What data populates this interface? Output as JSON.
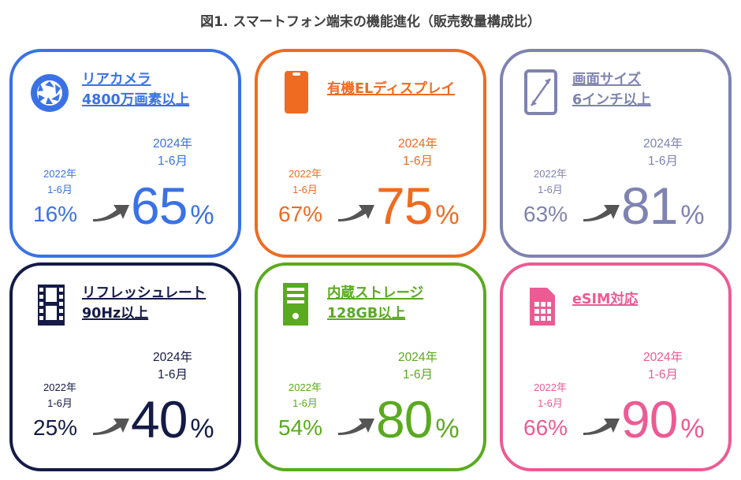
{
  "title": "図1. スマートフォン端末の機能進化（販売数量構成比）",
  "cards": [
    {
      "id": "rear-camera",
      "color": "#3a72e6",
      "icon": "camera-aperture-icon",
      "label_lines": [
        "リアカメラ",
        "4800万画素以上"
      ],
      "old_period": [
        "2022年",
        "1-6月"
      ],
      "new_period": [
        "2024年",
        "1-6月"
      ],
      "old_value": "16%",
      "new_value": "65",
      "percent_sign": "%"
    },
    {
      "id": "oled",
      "color": "#ef6b22",
      "icon": "smartphone-icon",
      "label_lines": [
        "有機ELディスプレイ"
      ],
      "old_period": [
        "2022年",
        "1-6月"
      ],
      "new_period": [
        "2024年",
        "1-6月"
      ],
      "old_value": "67%",
      "new_value": "75",
      "percent_sign": "%"
    },
    {
      "id": "screen-size",
      "color": "#7f83b0",
      "icon": "tablet-resize-icon",
      "label_lines": [
        "画面サイズ",
        "6インチ以上"
      ],
      "old_period": [
        "2022年",
        "1-6月"
      ],
      "new_period": [
        "2024年",
        "1-6月"
      ],
      "old_value": "63%",
      "new_value": "81",
      "percent_sign": "%"
    },
    {
      "id": "refresh-rate",
      "color": "#151b46",
      "icon": "film-strip-icon",
      "label_lines": [
        "リフレッシュレート",
        "90Hz以上"
      ],
      "old_period": [
        "2022年",
        "1-6月"
      ],
      "new_period": [
        "2024年",
        "1-6月"
      ],
      "old_value": "25%",
      "new_value": "40",
      "percent_sign": "%"
    },
    {
      "id": "storage",
      "color": "#5aaa1f",
      "icon": "storage-tower-icon",
      "label_lines": [
        "内蔵ストレージ",
        "128GB以上"
      ],
      "old_period": [
        "2022年",
        "1-6月"
      ],
      "new_period": [
        "2024年",
        "1-6月"
      ],
      "old_value": "54%",
      "new_value": "80",
      "percent_sign": "%"
    },
    {
      "id": "esim",
      "color": "#ec5b93",
      "icon": "sim-card-icon",
      "label_lines": [
        "eSIM対応"
      ],
      "old_period": [
        "2022年",
        "1-6月"
      ],
      "new_period": [
        "2024年",
        "1-6月"
      ],
      "old_value": "66%",
      "new_value": "90",
      "percent_sign": "%"
    }
  ],
  "arrow_color": "#555555"
}
